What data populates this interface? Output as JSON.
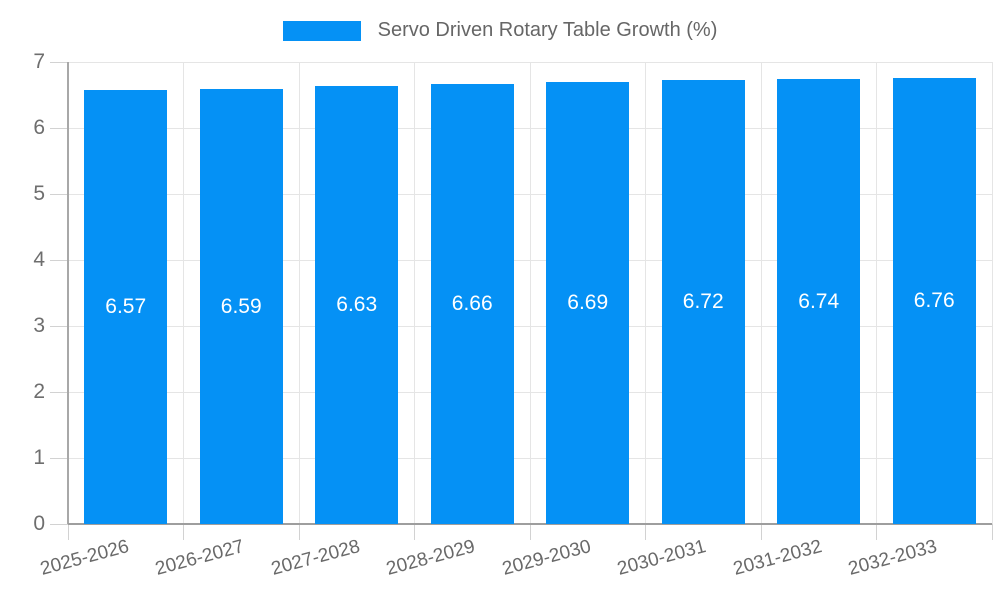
{
  "chart_data": {
    "type": "bar",
    "title": "Servo Driven Rotary Table Growth (%)",
    "series_name": "Servo Driven Rotary Table Growth (%)",
    "categories": [
      "2025-2026",
      "2026-2027",
      "2027-2028",
      "2028-2029",
      "2029-2030",
      "2030-2031",
      "2031-2032",
      "2032-2033"
    ],
    "values": [
      6.57,
      6.59,
      6.63,
      6.66,
      6.69,
      6.72,
      6.74,
      6.76
    ],
    "value_label_decimals": 2,
    "xlabel": "",
    "ylabel": "",
    "ylim": [
      0,
      7
    ],
    "ytick_step": 1,
    "yticks": [
      0,
      1,
      2,
      3,
      4,
      5,
      6,
      7
    ],
    "grid": true,
    "legend_position": "top-center",
    "x_label_rotation_deg": -15,
    "colors": {
      "bar": "#0591f5",
      "value_label": "#ffffff",
      "grid": "#e5e5e5",
      "tick": "#d2d2d2",
      "axis": "#9e9e9e",
      "axis_text": "#6e6e6e",
      "legend_text": "#666666",
      "background": "#ffffff"
    }
  }
}
